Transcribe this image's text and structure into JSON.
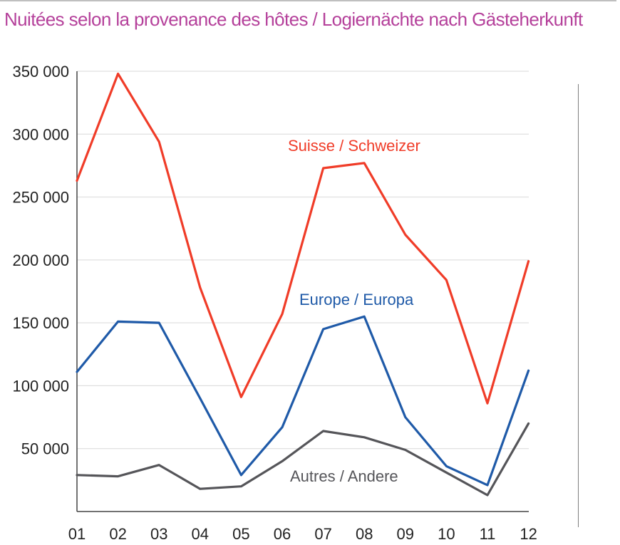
{
  "title": "Nuitées selon la provenance des hôtes / Logiernächte nach Gästeherkunft",
  "chart_data": {
    "type": "line",
    "title": "Nuitées selon la provenance des hôtes / Logiernächte nach Gästeherkunft",
    "xlabel": "",
    "ylabel": "",
    "categories": [
      "01",
      "02",
      "03",
      "04",
      "05",
      "06",
      "07",
      "08",
      "09",
      "10",
      "11",
      "12"
    ],
    "ylim": [
      0,
      350000
    ],
    "yticks": [
      50000,
      100000,
      150000,
      200000,
      250000,
      300000,
      350000
    ],
    "ytick_labels": [
      "50 000",
      "100 000",
      "150 000",
      "200 000",
      "250 000",
      "300 000",
      "350 000"
    ],
    "grid": true,
    "series": [
      {
        "name": "Suisse / Schweizer",
        "color": "#f03c28",
        "values": [
          263000,
          348000,
          294000,
          178000,
          91000,
          157000,
          273000,
          277000,
          220000,
          184000,
          86000,
          199000
        ]
      },
      {
        "name": "Europe / Europa",
        "color": "#1f5aa8",
        "values": [
          111000,
          151000,
          150000,
          90000,
          29000,
          67000,
          145000,
          155000,
          75000,
          36000,
          21000,
          112000
        ]
      },
      {
        "name": "Autres / Andere",
        "color": "#555559",
        "values": [
          29000,
          28000,
          37000,
          18000,
          20000,
          40000,
          64000,
          59000,
          49000,
          31000,
          13000,
          70000
        ]
      }
    ]
  }
}
